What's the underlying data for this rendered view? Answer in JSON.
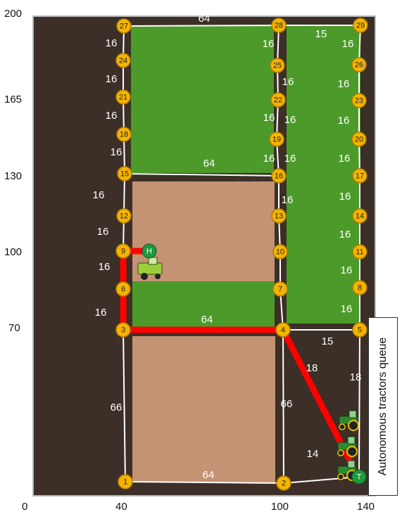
{
  "axis": {
    "y_ticks": [
      "200",
      "165",
      "130",
      "100",
      "70"
    ],
    "x_ticks": [
      "0",
      "40",
      "100",
      "140"
    ]
  },
  "nodes": [
    {
      "id": "1",
      "label": "1"
    },
    {
      "id": "2",
      "label": "2"
    },
    {
      "id": "3",
      "label": "3"
    },
    {
      "id": "4",
      "label": "4"
    },
    {
      "id": "5",
      "label": "5"
    },
    {
      "id": "6",
      "label": "6"
    },
    {
      "id": "7",
      "label": "7"
    },
    {
      "id": "8",
      "label": "8"
    },
    {
      "id": "9",
      "label": "9"
    },
    {
      "id": "10",
      "label": "10"
    },
    {
      "id": "11",
      "label": "11"
    },
    {
      "id": "12",
      "label": "12"
    },
    {
      "id": "13",
      "label": "13"
    },
    {
      "id": "14",
      "label": "14"
    },
    {
      "id": "15",
      "label": "15"
    },
    {
      "id": "16",
      "label": "16"
    },
    {
      "id": "17",
      "label": "17"
    },
    {
      "id": "18",
      "label": "18"
    },
    {
      "id": "19",
      "label": "19"
    },
    {
      "id": "20",
      "label": "20"
    },
    {
      "id": "21",
      "label": "21"
    },
    {
      "id": "22",
      "label": "22"
    },
    {
      "id": "23",
      "label": "23"
    },
    {
      "id": "24",
      "label": "24"
    },
    {
      "id": "25",
      "label": "25"
    },
    {
      "id": "26",
      "label": "26"
    },
    {
      "id": "27",
      "label": "27"
    },
    {
      "id": "28",
      "label": "28"
    },
    {
      "id": "29",
      "label": "29"
    }
  ],
  "edge_labels": {
    "top_27_28": "64",
    "top_28_29": "15",
    "left_27_24": "16",
    "left_24_21": "16",
    "left_21_18": "16",
    "left_18_15": "16",
    "left_15_12": "16",
    "left_12_9": "16",
    "left_9_6": "16",
    "left_6_3": "16",
    "left_3_1": "66",
    "mid_28_25": "16",
    "mid_25_22": "16",
    "mid_22_19": "16",
    "mid_19_16": "16",
    "mid_4_2": "66",
    "right_29_26": "16",
    "right_26_23": "16",
    "right_23_20": "16",
    "right_20_17": "16",
    "right_17_14": "16",
    "right_14_11": "16",
    "right_11_8": "16",
    "right_8_5": "16",
    "right_5_T": "18",
    "inner_22_19": "16",
    "inner_19_16": "16",
    "inner_16_13": "16",
    "h_15_16": "64",
    "h_3_4": "64",
    "h_4_5": "15",
    "h_1_2": "64",
    "diag_4_T": "18",
    "bottom_2_T": "14"
  },
  "markers": {
    "harvester": "H",
    "tractor": "T"
  },
  "queue_label": "Autonomous tractors queue",
  "colors": {
    "node_fill": "#f4b400",
    "node_stroke": "#b07d00",
    "route": "#ff0000",
    "marker": "#1f9a3d",
    "grass": "#4c9a2a",
    "soil": "#c49373",
    "dirt": "#3b2f27",
    "grid_line": "#ffffff"
  }
}
